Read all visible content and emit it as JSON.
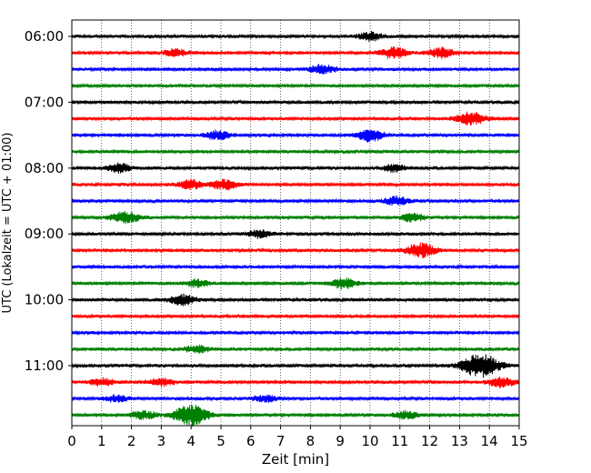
{
  "chart_data": {
    "type": "line",
    "xlabel": "Zeit  [min]",
    "ylabel": "UTC (Lokalzeit = UTC + 01:00)",
    "xlim": [
      0,
      15
    ],
    "x_ticks": [
      "0",
      "1",
      "2",
      "3",
      "4",
      "5",
      "6",
      "7",
      "8",
      "9",
      "10",
      "11",
      "12",
      "13",
      "14",
      "15"
    ],
    "y_ticks": [
      "06:00",
      "07:00",
      "08:00",
      "09:00",
      "10:00",
      "11:00"
    ],
    "grid": "vertical dotted",
    "colors": [
      "#000000",
      "#ff0000",
      "#0000ff",
      "#008000"
    ],
    "series": [
      {
        "start": "06:00",
        "events": [
          [
            10.0,
            1.4
          ]
        ]
      },
      {
        "start": "06:15",
        "events": [
          [
            3.5,
            1.2
          ],
          [
            10.8,
            1.8
          ],
          [
            12.4,
            1.6
          ]
        ]
      },
      {
        "start": "06:30",
        "events": [
          [
            8.4,
            1.5
          ]
        ]
      },
      {
        "start": "06:45",
        "events": []
      },
      {
        "start": "07:00",
        "events": []
      },
      {
        "start": "07:15",
        "events": [
          [
            13.4,
            2.2
          ]
        ]
      },
      {
        "start": "07:30",
        "events": [
          [
            4.9,
            1.5
          ],
          [
            10.0,
            2.0
          ]
        ]
      },
      {
        "start": "07:45",
        "events": []
      },
      {
        "start": "08:00",
        "events": [
          [
            1.6,
            1.5
          ],
          [
            10.8,
            1.2
          ]
        ]
      },
      {
        "start": "08:15",
        "events": [
          [
            4.0,
            1.5
          ],
          [
            5.1,
            1.6
          ]
        ]
      },
      {
        "start": "08:30",
        "events": [
          [
            10.9,
            1.4
          ]
        ]
      },
      {
        "start": "08:45",
        "events": [
          [
            1.8,
            2.0
          ],
          [
            11.4,
            1.3
          ]
        ]
      },
      {
        "start": "09:00",
        "events": [
          [
            6.3,
            1.3
          ]
        ]
      },
      {
        "start": "09:15",
        "events": [
          [
            11.7,
            2.4
          ]
        ]
      },
      {
        "start": "09:30",
        "events": []
      },
      {
        "start": "09:45",
        "events": [
          [
            4.2,
            1.3
          ],
          [
            9.1,
            1.7
          ]
        ]
      },
      {
        "start": "10:00",
        "events": [
          [
            3.7,
            1.8
          ]
        ]
      },
      {
        "start": "10:15",
        "events": []
      },
      {
        "start": "10:30",
        "events": []
      },
      {
        "start": "10:45",
        "events": [
          [
            4.2,
            1.2
          ]
        ]
      },
      {
        "start": "11:00",
        "events": [
          [
            13.7,
            4.0
          ]
        ]
      },
      {
        "start": "11:15",
        "events": [
          [
            1.0,
            1.3
          ],
          [
            3.0,
            1.3
          ],
          [
            14.4,
            1.6
          ]
        ]
      },
      {
        "start": "11:30",
        "events": [
          [
            1.5,
            1.1
          ],
          [
            6.5,
            1.1
          ]
        ]
      },
      {
        "start": "11:45",
        "events": [
          [
            4.0,
            3.5
          ],
          [
            2.4,
            1.3
          ],
          [
            11.2,
            1.3
          ]
        ]
      }
    ]
  }
}
